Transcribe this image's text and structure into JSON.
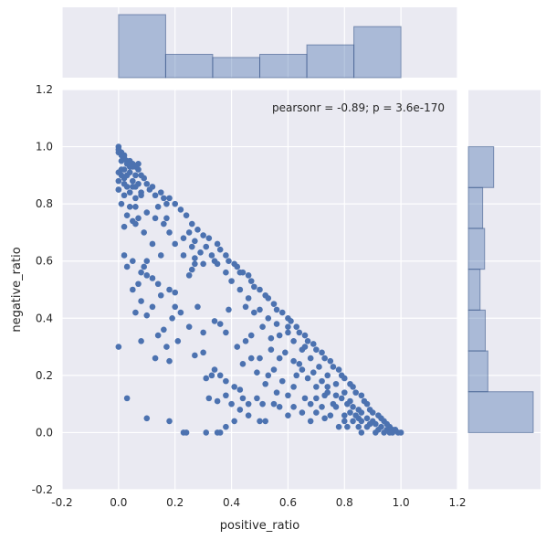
{
  "chart_data": {
    "type": "scatter",
    "subtype": "jointplot",
    "xlabel": "positive_ratio",
    "ylabel": "negative_ratio",
    "annotation": "pearsonr = -0.89; p = 3.6e-170",
    "annotation_placement": "top-right",
    "xlim": [
      -0.2,
      1.2
    ],
    "ylim": [
      -0.2,
      1.2
    ],
    "xticks": [
      "-0.2",
      "0.0",
      "0.2",
      "0.4",
      "0.6",
      "0.8",
      "1.0",
      "1.2"
    ],
    "yticks": [
      "-0.2",
      "0.0",
      "0.2",
      "0.4",
      "0.6",
      "0.8",
      "1.0",
      "1.2"
    ],
    "xtick_values": [
      -0.2,
      0.0,
      0.2,
      0.4,
      0.6,
      0.8,
      1.0,
      1.2
    ],
    "ytick_values": [
      -0.2,
      0.0,
      0.2,
      0.4,
      0.6,
      0.8,
      1.0,
      1.2
    ],
    "grid": true,
    "colors": {
      "background": "#EAEAF2",
      "grid": "#FFFFFF",
      "points": "#4C72B0",
      "hist_fill": "#4C72B0",
      "hist_fill_opacity": 0.4
    },
    "points": [
      [
        0.0,
        1.0
      ],
      [
        0.0,
        0.99
      ],
      [
        0.0,
        0.98
      ],
      [
        0.01,
        0.98
      ],
      [
        0.01,
        0.97
      ],
      [
        0.02,
        0.97
      ],
      [
        0.02,
        0.96
      ],
      [
        0.01,
        0.95
      ],
      [
        0.03,
        0.95
      ],
      [
        0.03,
        0.94
      ],
      [
        0.04,
        0.95
      ],
      [
        0.05,
        0.94
      ],
      [
        0.05,
        0.93
      ],
      [
        0.06,
        0.93
      ],
      [
        0.07,
        0.92
      ],
      [
        0.02,
        0.92
      ],
      [
        0.04,
        0.91
      ],
      [
        0.06,
        0.9
      ],
      [
        0.08,
        0.9
      ],
      [
        0.09,
        0.89
      ],
      [
        0.02,
        0.89
      ],
      [
        0.05,
        0.88
      ],
      [
        0.07,
        0.87
      ],
      [
        0.1,
        0.87
      ],
      [
        0.03,
        0.86
      ],
      [
        0.06,
        0.86
      ],
      [
        0.11,
        0.85
      ],
      [
        0.12,
        0.86
      ],
      [
        0.0,
        0.85
      ],
      [
        0.04,
        0.84
      ],
      [
        0.08,
        0.84
      ],
      [
        0.13,
        0.83
      ],
      [
        0.15,
        0.84
      ],
      [
        0.02,
        0.83
      ],
      [
        0.06,
        0.82
      ],
      [
        0.16,
        0.82
      ],
      [
        0.18,
        0.82
      ],
      [
        0.2,
        0.8
      ],
      [
        0.01,
        0.8
      ],
      [
        0.04,
        0.79
      ],
      [
        0.17,
        0.8
      ],
      [
        0.22,
        0.78
      ],
      [
        0.24,
        0.76
      ],
      [
        0.03,
        0.76
      ],
      [
        0.07,
        0.75
      ],
      [
        0.01,
        0.92
      ],
      [
        0.0,
        0.88
      ],
      [
        0.0,
        0.91
      ],
      [
        0.01,
        0.9
      ],
      [
        0.03,
        0.9
      ],
      [
        0.17,
        0.75
      ],
      [
        0.16,
        0.73
      ],
      [
        0.26,
        0.73
      ],
      [
        0.28,
        0.71
      ],
      [
        0.02,
        0.72
      ],
      [
        0.05,
        0.74
      ],
      [
        0.18,
        0.7
      ],
      [
        0.25,
        0.7
      ],
      [
        0.3,
        0.69
      ],
      [
        0.32,
        0.68
      ],
      [
        0.23,
        0.68
      ],
      [
        0.27,
        0.67
      ],
      [
        0.35,
        0.66
      ],
      [
        0.2,
        0.66
      ],
      [
        0.26,
        0.65
      ],
      [
        0.31,
        0.65
      ],
      [
        0.36,
        0.64
      ],
      [
        0.38,
        0.62
      ],
      [
        0.29,
        0.63
      ],
      [
        0.33,
        0.62
      ],
      [
        0.23,
        0.62
      ],
      [
        0.27,
        0.61
      ],
      [
        0.34,
        0.6
      ],
      [
        0.39,
        0.6
      ],
      [
        0.41,
        0.59
      ],
      [
        0.3,
        0.59
      ],
      [
        0.35,
        0.59
      ],
      [
        0.42,
        0.58
      ],
      [
        0.44,
        0.56
      ],
      [
        0.38,
        0.56
      ],
      [
        0.46,
        0.55
      ],
      [
        0.47,
        0.53
      ],
      [
        0.4,
        0.53
      ],
      [
        0.48,
        0.51
      ],
      [
        0.5,
        0.5
      ],
      [
        0.43,
        0.5
      ],
      [
        0.52,
        0.48
      ],
      [
        0.53,
        0.47
      ],
      [
        0.46,
        0.47
      ],
      [
        0.55,
        0.45
      ],
      [
        0.56,
        0.43
      ],
      [
        0.5,
        0.43
      ],
      [
        0.58,
        0.42
      ],
      [
        0.6,
        0.4
      ],
      [
        0.53,
        0.4
      ],
      [
        0.61,
        0.39
      ],
      [
        0.56,
        0.38
      ],
      [
        0.63,
        0.37
      ],
      [
        0.64,
        0.35
      ],
      [
        0.6,
        0.35
      ],
      [
        0.66,
        0.34
      ],
      [
        0.67,
        0.32
      ],
      [
        0.62,
        0.32
      ],
      [
        0.69,
        0.31
      ],
      [
        0.7,
        0.29
      ],
      [
        0.65,
        0.29
      ],
      [
        0.72,
        0.28
      ],
      [
        0.73,
        0.26
      ],
      [
        0.68,
        0.26
      ],
      [
        0.75,
        0.25
      ],
      [
        0.76,
        0.23
      ],
      [
        0.71,
        0.23
      ],
      [
        0.78,
        0.22
      ],
      [
        0.79,
        0.2
      ],
      [
        0.74,
        0.2
      ],
      [
        0.8,
        0.19
      ],
      [
        0.82,
        0.17
      ],
      [
        0.77,
        0.17
      ],
      [
        0.83,
        0.16
      ],
      [
        0.84,
        0.14
      ],
      [
        0.8,
        0.14
      ],
      [
        0.86,
        0.13
      ],
      [
        0.87,
        0.11
      ],
      [
        0.82,
        0.11
      ],
      [
        0.88,
        0.1
      ],
      [
        0.89,
        0.08
      ],
      [
        0.85,
        0.08
      ],
      [
        0.9,
        0.07
      ],
      [
        0.92,
        0.06
      ],
      [
        0.88,
        0.05
      ],
      [
        0.93,
        0.05
      ],
      [
        0.94,
        0.04
      ],
      [
        0.91,
        0.03
      ],
      [
        0.95,
        0.03
      ],
      [
        0.96,
        0.02
      ],
      [
        0.93,
        0.02
      ],
      [
        0.97,
        0.01
      ],
      [
        0.98,
        0.01
      ],
      [
        0.95,
        0.01
      ],
      [
        0.99,
        0.0
      ],
      [
        1.0,
        0.0
      ],
      [
        0.97,
        0.0
      ],
      [
        0.9,
        0.04
      ],
      [
        0.86,
        0.07
      ],
      [
        0.83,
        0.09
      ],
      [
        0.8,
        0.06
      ],
      [
        0.76,
        0.1
      ],
      [
        0.73,
        0.13
      ],
      [
        0.7,
        0.16
      ],
      [
        0.67,
        0.19
      ],
      [
        0.1,
        0.6
      ],
      [
        0.09,
        0.58
      ],
      [
        0.08,
        0.56
      ],
      [
        0.03,
        0.58
      ],
      [
        0.05,
        0.6
      ],
      [
        0.02,
        0.62
      ],
      [
        0.07,
        0.52
      ],
      [
        0.05,
        0.5
      ],
      [
        0.06,
        0.42
      ],
      [
        0.08,
        0.46
      ],
      [
        0.1,
        0.55
      ],
      [
        0.12,
        0.54
      ],
      [
        0.14,
        0.52
      ],
      [
        0.12,
        0.44
      ],
      [
        0.1,
        0.41
      ],
      [
        0.15,
        0.48
      ],
      [
        0.18,
        0.5
      ],
      [
        0.2,
        0.44
      ],
      [
        0.22,
        0.42
      ],
      [
        0.19,
        0.4
      ],
      [
        0.16,
        0.36
      ],
      [
        0.14,
        0.34
      ],
      [
        0.17,
        0.3
      ],
      [
        0.13,
        0.26
      ],
      [
        0.0,
        0.3
      ],
      [
        0.08,
        0.32
      ],
      [
        0.18,
        0.25
      ],
      [
        0.21,
        0.32
      ],
      [
        0.25,
        0.37
      ],
      [
        0.27,
        0.27
      ],
      [
        0.3,
        0.28
      ],
      [
        0.33,
        0.2
      ],
      [
        0.31,
        0.19
      ],
      [
        0.34,
        0.22
      ],
      [
        0.36,
        0.2
      ],
      [
        0.38,
        0.18
      ],
      [
        0.41,
        0.16
      ],
      [
        0.43,
        0.15
      ],
      [
        0.32,
        0.12
      ],
      [
        0.35,
        0.11
      ],
      [
        0.38,
        0.13
      ],
      [
        0.4,
        0.1
      ],
      [
        0.44,
        0.12
      ],
      [
        0.46,
        0.1
      ],
      [
        0.49,
        0.12
      ],
      [
        0.51,
        0.1
      ],
      [
        0.3,
        0.35
      ],
      [
        0.36,
        0.38
      ],
      [
        0.38,
        0.35
      ],
      [
        0.42,
        0.3
      ],
      [
        0.45,
        0.32
      ],
      [
        0.47,
        0.34
      ],
      [
        0.44,
        0.24
      ],
      [
        0.47,
        0.26
      ],
      [
        0.5,
        0.26
      ],
      [
        0.49,
        0.21
      ],
      [
        0.53,
        0.2
      ],
      [
        0.55,
        0.22
      ],
      [
        0.52,
        0.17
      ],
      [
        0.56,
        0.14
      ],
      [
        0.58,
        0.18
      ],
      [
        0.6,
        0.13
      ],
      [
        0.62,
        0.16
      ],
      [
        0.63,
        0.2
      ],
      [
        0.57,
        0.26
      ],
      [
        0.54,
        0.29
      ],
      [
        0.57,
        0.34
      ],
      [
        0.62,
        0.25
      ],
      [
        0.65,
        0.22
      ],
      [
        0.66,
        0.12
      ],
      [
        0.68,
        0.1
      ],
      [
        0.7,
        0.12
      ],
      [
        0.72,
        0.09
      ],
      [
        0.74,
        0.14
      ],
      [
        0.75,
        0.06
      ],
      [
        0.77,
        0.09
      ],
      [
        0.78,
        0.02
      ],
      [
        0.8,
        0.04
      ],
      [
        0.81,
        0.02
      ],
      [
        0.83,
        0.04
      ],
      [
        0.85,
        0.02
      ],
      [
        0.84,
        0.06
      ],
      [
        0.86,
        0.0
      ],
      [
        0.88,
        0.02
      ],
      [
        0.79,
        0.12
      ],
      [
        0.73,
        0.05
      ],
      [
        0.7,
        0.07
      ],
      [
        0.68,
        0.04
      ],
      [
        0.65,
        0.07
      ],
      [
        0.62,
        0.09
      ],
      [
        0.6,
        0.06
      ],
      [
        0.57,
        0.09
      ],
      [
        0.55,
        0.1
      ],
      [
        0.5,
        0.04
      ],
      [
        0.52,
        0.04
      ],
      [
        0.46,
        0.06
      ],
      [
        0.43,
        0.08
      ],
      [
        0.41,
        0.04
      ],
      [
        0.38,
        0.02
      ],
      [
        0.36,
        0.0
      ],
      [
        0.35,
        0.0
      ],
      [
        0.31,
        0.0
      ],
      [
        0.24,
        0.0
      ],
      [
        0.23,
        0.0
      ],
      [
        0.18,
        0.04
      ],
      [
        0.1,
        0.05
      ],
      [
        0.03,
        0.12
      ],
      [
        0.0,
        0.85
      ],
      [
        0.02,
        0.87
      ],
      [
        0.04,
        0.93
      ],
      [
        0.07,
        0.94
      ],
      [
        0.05,
        0.86
      ],
      [
        0.08,
        0.83
      ],
      [
        0.06,
        0.79
      ],
      [
        0.13,
        0.75
      ],
      [
        0.1,
        0.77
      ],
      [
        0.14,
        0.79
      ],
      [
        0.27,
        0.59
      ],
      [
        0.26,
        0.57
      ],
      [
        0.25,
        0.55
      ],
      [
        0.43,
        0.56
      ],
      [
        0.45,
        0.44
      ],
      [
        0.48,
        0.42
      ],
      [
        0.51,
        0.37
      ],
      [
        0.54,
        0.33
      ],
      [
        0.59,
        0.28
      ],
      [
        0.64,
        0.24
      ],
      [
        0.69,
        0.21
      ],
      [
        0.72,
        0.18
      ],
      [
        0.77,
        0.13
      ],
      [
        0.81,
        0.1
      ],
      [
        0.85,
        0.05
      ],
      [
        0.89,
        0.03
      ],
      [
        0.92,
        0.01
      ],
      [
        0.96,
        0.0
      ],
      [
        0.94,
        0.0
      ],
      [
        0.91,
        0.0
      ],
      [
        0.86,
        0.04
      ],
      [
        0.82,
        0.07
      ],
      [
        0.74,
        0.16
      ],
      [
        0.66,
        0.3
      ],
      [
        0.6,
        0.37
      ],
      [
        0.39,
        0.43
      ],
      [
        0.34,
        0.39
      ],
      [
        0.28,
        0.44
      ],
      [
        0.2,
        0.49
      ],
      [
        0.15,
        0.62
      ],
      [
        0.12,
        0.66
      ],
      [
        0.09,
        0.7
      ],
      [
        0.06,
        0.73
      ]
    ],
    "marginal_x_hist": {
      "bin_edges": [
        0.0,
        0.1667,
        0.3333,
        0.5,
        0.6667,
        0.8333,
        1.0
      ],
      "counts": [
        1.0,
        0.37,
        0.32,
        0.37,
        0.52,
        0.81
      ]
    },
    "marginal_y_hist": {
      "bin_edges": [
        0.0,
        0.1429,
        0.2857,
        0.4286,
        0.5714,
        0.7143,
        0.8571,
        1.0
      ],
      "counts": [
        1.0,
        0.3,
        0.26,
        0.18,
        0.25,
        0.22,
        0.39
      ]
    }
  }
}
